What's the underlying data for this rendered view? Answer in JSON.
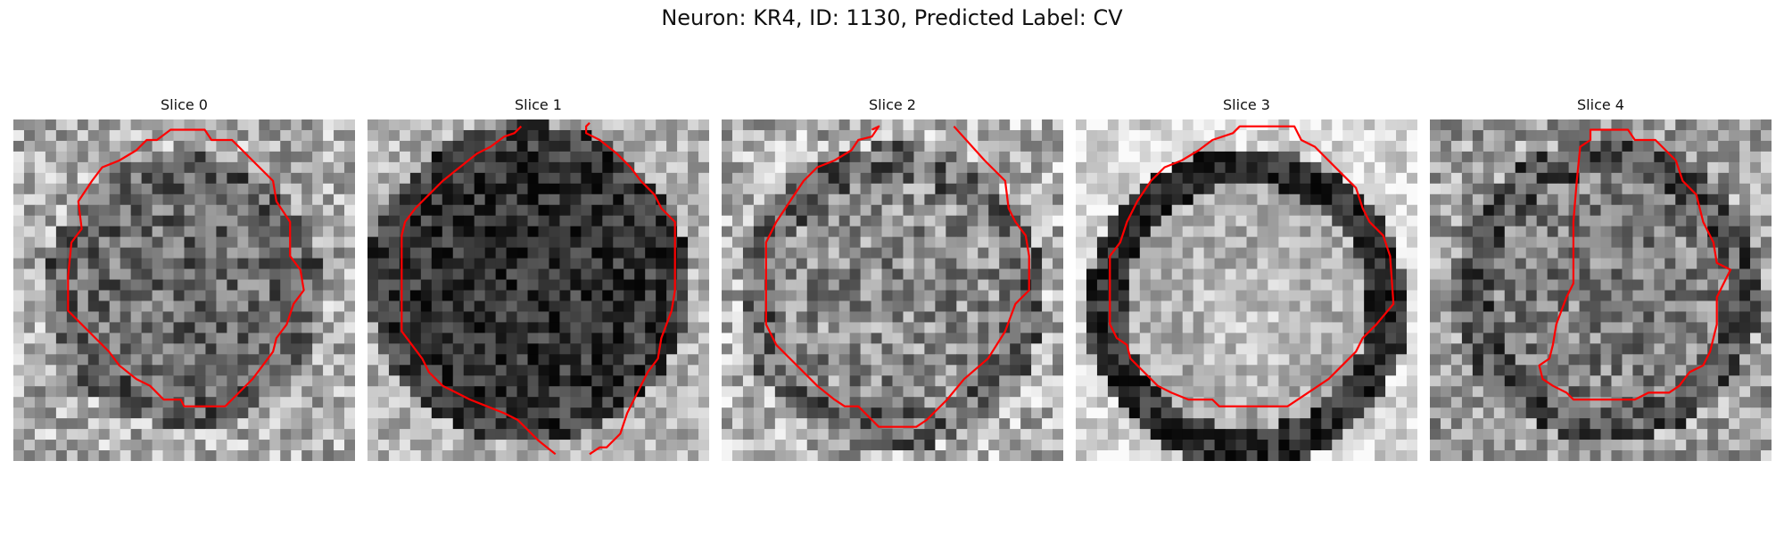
{
  "figure": {
    "title": "Neuron: KR4, ID: 1130, Predicted Label: CV",
    "contour_color": "#ff0000"
  },
  "slices": [
    {
      "title": "Slice 0"
    },
    {
      "title": "Slice 1"
    },
    {
      "title": "Slice 2"
    },
    {
      "title": "Slice 3"
    },
    {
      "title": "Slice 4"
    }
  ]
}
